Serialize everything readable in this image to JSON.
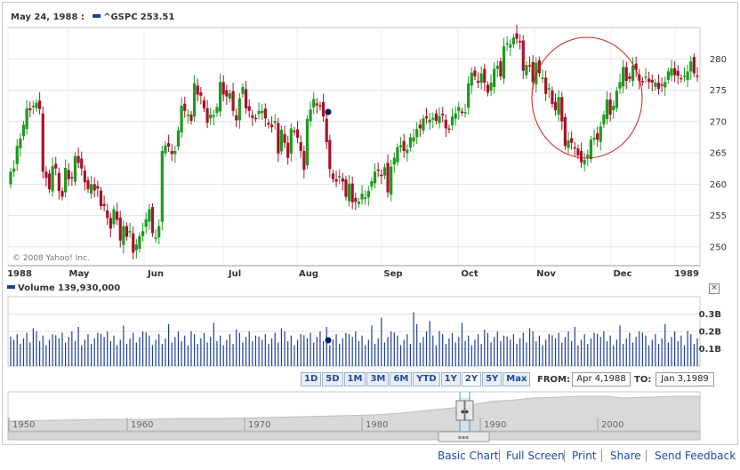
{
  "header": {
    "date": "May 24, 1988 :",
    "symbol": "^GSPC",
    "price": "253.51",
    "volume_label": "Volume",
    "volume_value": "139,930,000"
  },
  "watermark": "© 2008 Yahoo! Inc.",
  "close_button": "×",
  "colors": {
    "up": "#1e9a1e",
    "down": "#a8122a",
    "volume": "#1c3f95",
    "annotation": "#d01a1a",
    "marker": "#0b1a5c"
  },
  "chart_data": {
    "type": "candlestick",
    "price_axis": {
      "ticks": [
        250,
        255,
        260,
        265,
        270,
        275,
        280
      ],
      "range": [
        247,
        285
      ]
    },
    "x_axis": {
      "labels": [
        "1988",
        "May",
        "Jun",
        "Jul",
        "Aug",
        "Sep",
        "Oct",
        "Nov",
        "Dec",
        "1989"
      ]
    },
    "volume_axis": {
      "ticks": [
        "0.3B",
        "0.2B",
        "0.1B"
      ],
      "range_billions": [
        0,
        0.4
      ]
    },
    "marker": {
      "date": "May 24, 1988",
      "close": 253.51,
      "volume": 139930000
    },
    "annotation": "circle around the November–December 1988 decline and recovery",
    "closes": [
      262,
      262.5,
      266.1,
      267.3,
      269.5,
      272.1,
      271.8,
      272.5,
      273,
      272,
      262,
      261,
      259.2,
      262.9,
      262.5,
      258.9,
      258,
      262.6,
      260.8,
      261.1,
      264.5,
      263.4,
      262.5,
      260.3,
      259.2,
      260,
      259,
      259.3,
      256.5,
      256.5,
      254.6,
      252.9,
      256,
      254.3,
      251,
      253.3,
      251.6,
      252.5,
      249.1,
      250.4,
      251.7,
      252.5,
      254.4,
      256,
      252.2,
      251.5,
      253.3,
      265.3,
      266.2,
      266,
      264.8,
      265.3,
      268.6,
      272.5,
      271.7,
      271.1,
      270.1,
      276.1,
      274.3,
      274.1,
      272.1,
      269.8,
      271.1,
      271,
      272.3,
      276.3,
      274.3,
      274,
      274.5,
      271.7,
      270.2,
      273.7,
      275.5,
      272.1,
      271.7,
      270.6,
      270.5,
      271.7,
      271.7,
      270.5,
      269.5,
      269.1,
      270.1,
      264.9,
      268.7,
      266.6,
      264.2,
      268.9,
      268.4,
      267.4,
      265.3,
      262.3,
      270.4,
      271.9,
      273.6,
      272.6,
      272.4,
      270.8,
      266.7,
      262.4,
      260.8,
      260.4,
      261.3,
      260.4,
      258,
      260.1,
      257.1,
      257.2,
      257.2,
      258.5,
      257.9,
      258.9,
      260.5,
      262,
      262.2,
      261.4,
      262.7,
      258.7,
      262.8,
      264.2,
      265.9,
      266.2,
      265.3,
      265.5,
      267.5,
      267.5,
      268.8,
      268.9,
      270.5,
      270.5,
      270.3,
      270.6,
      270.1,
      270.9,
      271,
      268.9,
      268.7,
      270.8,
      271.3,
      272.3,
      271.5,
      271.5,
      276.1,
      277.8,
      277.2,
      276.2,
      277.7,
      276.2,
      274.6,
      276.2,
      278.4,
      278.9,
      277.2,
      282,
      282.5,
      282.3,
      283.4,
      283.2,
      282.6,
      278.1,
      279,
      278.8,
      276.3,
      279.4,
      277.7,
      277,
      274.4,
      275.3,
      272.8,
      271.8,
      273.9,
      270,
      266.1,
      267,
      266.6,
      265.7,
      264.6,
      263.5,
      263.9,
      264.7,
      267.1,
      267.4,
      267.1,
      269.2,
      271.1,
      273.5,
      271.1,
      272.5,
      274.9,
      276.3,
      278.7,
      276.5,
      276.8,
      278.9,
      278.2,
      276.5,
      276.3,
      277.2,
      276.3,
      276.2,
      276.2,
      275.2,
      275.8,
      276.3,
      278,
      278.5,
      277.4,
      277.3,
      276.8,
      277.3,
      278,
      279.6,
      277.7,
      277.2
    ]
  },
  "range_buttons": [
    "1D",
    "5D",
    "1M",
    "3M",
    "6M",
    "YTD",
    "1Y",
    "2Y",
    "5Y",
    "Max"
  ],
  "selected_range": "2Y",
  "from_label": "FROM:",
  "from_value": "Apr 4,1988",
  "to_label": "TO:",
  "to_value": "Jan 3,1989",
  "navigator": {
    "labels": [
      "1950",
      "1960",
      "1970",
      "1980",
      "1990",
      "2000"
    ],
    "handle_grip": "◆◆",
    "scroll_grip": "▪▪▪"
  },
  "footer": [
    "Basic Chart",
    "Full Screen",
    "Print",
    "Share",
    "Send Feedback"
  ]
}
